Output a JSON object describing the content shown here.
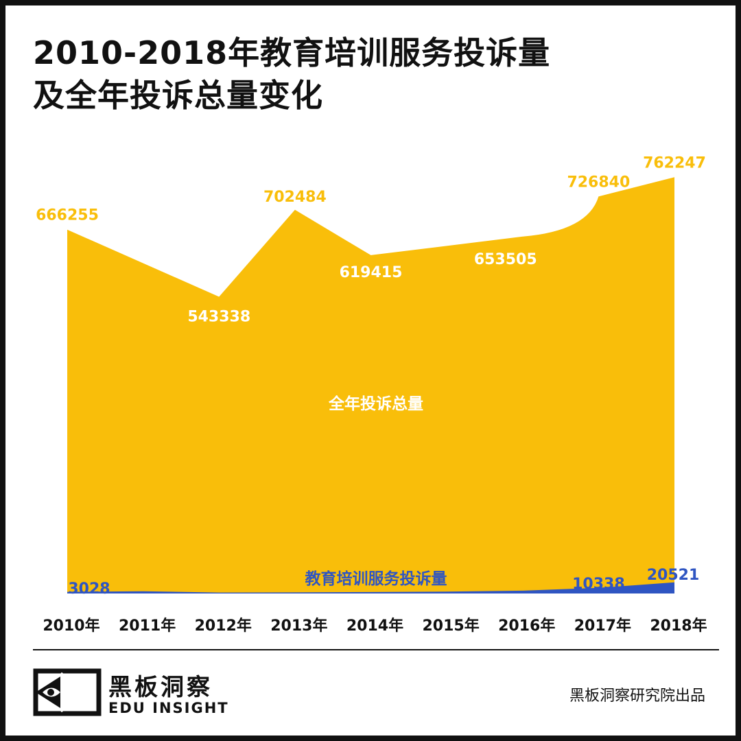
{
  "title_lines": [
    "2010-2018年教育培训服务投诉量",
    "及全年投诉总量变化"
  ],
  "footer": {
    "logo_cn": "黑板洞察",
    "logo_en": "EDU INSIGHT",
    "credit": "黑板洞察研究院出品"
  },
  "colors": {
    "total": "#F9BE0A",
    "education": "#2F55C2",
    "total_label": "#F9BE0A",
    "total_label_inner": "#FFFFFF",
    "education_label": "#2F55C2",
    "axis_text": "#111111"
  },
  "chart_data": {
    "type": "area",
    "title": "2010-2018年教育培训服务投诉量 及全年投诉总量变化",
    "categories": [
      "2010年",
      "2011年",
      "2012年",
      "2013年",
      "2014年",
      "2015年",
      "2016年",
      "2017年",
      "2018年"
    ],
    "series": [
      {
        "name": "全年投诉总量",
        "values": [
          666255,
          null,
          543338,
          702484,
          619415,
          null,
          653505,
          726840,
          762247
        ],
        "data_labels": [
          "666255",
          "",
          "543338",
          "702484",
          "619415",
          "",
          "653505",
          "726840",
          "762247"
        ]
      },
      {
        "name": "教育培训服务投诉量",
        "values": [
          3028,
          null,
          null,
          null,
          null,
          null,
          null,
          10338,
          20521
        ],
        "data_labels": [
          "3028",
          "",
          "",
          "",
          "",
          "",
          "",
          "10338",
          "20521"
        ]
      }
    ],
    "xlabel": "",
    "ylabel": "",
    "ylim": [
      0,
      800000
    ],
    "grid": false,
    "legend": "none"
  }
}
